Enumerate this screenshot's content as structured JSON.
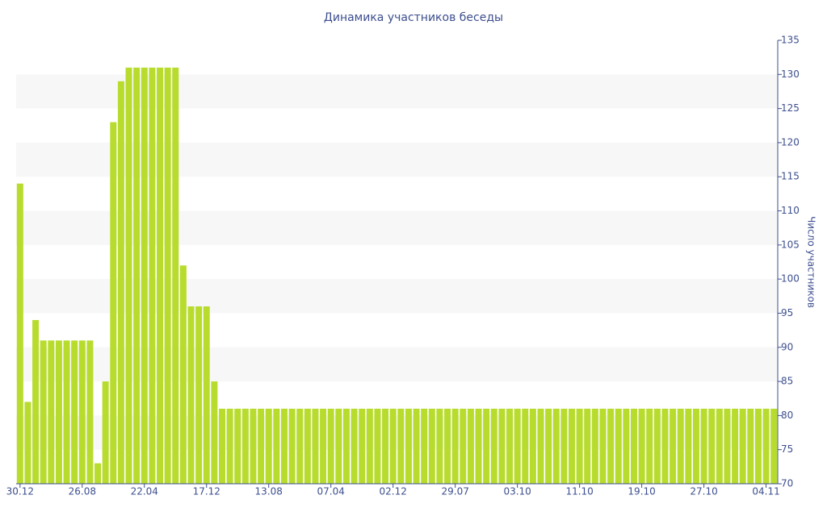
{
  "chart_data": {
    "type": "bar",
    "title": "Динамика участников беседы",
    "y_axis_label": "Число участников",
    "categories": [
      "30.12",
      null,
      null,
      null,
      null,
      null,
      null,
      null,
      "26.08",
      null,
      null,
      null,
      null,
      null,
      null,
      null,
      "22.04",
      null,
      null,
      null,
      null,
      null,
      null,
      null,
      "17.12",
      null,
      null,
      null,
      null,
      null,
      null,
      null,
      "13.08",
      null,
      null,
      null,
      null,
      null,
      null,
      null,
      "07.04",
      null,
      null,
      null,
      null,
      null,
      null,
      null,
      "02.12",
      null,
      null,
      null,
      null,
      null,
      null,
      null,
      "29.07",
      null,
      null,
      null,
      null,
      null,
      null,
      null,
      "03.10",
      null,
      null,
      null,
      null,
      null,
      null,
      null,
      "11.10",
      null,
      null,
      null,
      null,
      null,
      null,
      null,
      "19.10",
      null,
      null,
      null,
      null,
      null,
      null,
      null,
      "27.10",
      null,
      null,
      null,
      null,
      null,
      null,
      null,
      "04.11",
      null
    ],
    "values": [
      114,
      82,
      94,
      91,
      91,
      91,
      91,
      91,
      91,
      91,
      73,
      85,
      123,
      129,
      131,
      131,
      131,
      131,
      131,
      131,
      131,
      102,
      96,
      96,
      96,
      85,
      81,
      81,
      81,
      81,
      81,
      81,
      81,
      81,
      81,
      81,
      81,
      81,
      81,
      81,
      81,
      81,
      81,
      81,
      81,
      81,
      81,
      81,
      81,
      81,
      81,
      81,
      81,
      81,
      81,
      81,
      81,
      81,
      81,
      81,
      81,
      81,
      81,
      81,
      81,
      81,
      81,
      81,
      81,
      81,
      81,
      81,
      81,
      81,
      81,
      81,
      81,
      81,
      81,
      81,
      81,
      81,
      81,
      81,
      81,
      81,
      81,
      81,
      81,
      81,
      81,
      81,
      81,
      81,
      81,
      81,
      81,
      81
    ],
    "color": "#b8dc2e",
    "ylim": [
      70,
      135
    ],
    "yticks": [
      70,
      75,
      80,
      85,
      90,
      95,
      100,
      105,
      110,
      115,
      120,
      125,
      130,
      135
    ],
    "grid": true,
    "y_axis_side": "right"
  }
}
